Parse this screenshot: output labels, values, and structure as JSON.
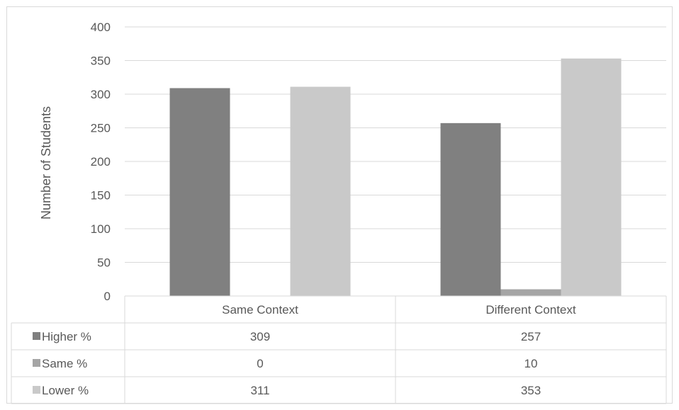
{
  "chart_data": {
    "type": "bar",
    "categories": [
      "Same Context",
      "Different Context"
    ],
    "series": [
      {
        "name": "Higher %",
        "values": [
          309,
          257
        ],
        "color": "#808080"
      },
      {
        "name": "Same %",
        "values": [
          0,
          10
        ],
        "color": "#a5a5a5"
      },
      {
        "name": "Lower %",
        "values": [
          311,
          353
        ],
        "color": "#c9c9c9"
      }
    ],
    "ylabel": "Number of Students",
    "xlabel": "",
    "ylim": [
      0,
      400
    ],
    "yticks": [
      0,
      50,
      100,
      150,
      200,
      250,
      300,
      350,
      400
    ],
    "grid": true,
    "legend": "data-table"
  }
}
